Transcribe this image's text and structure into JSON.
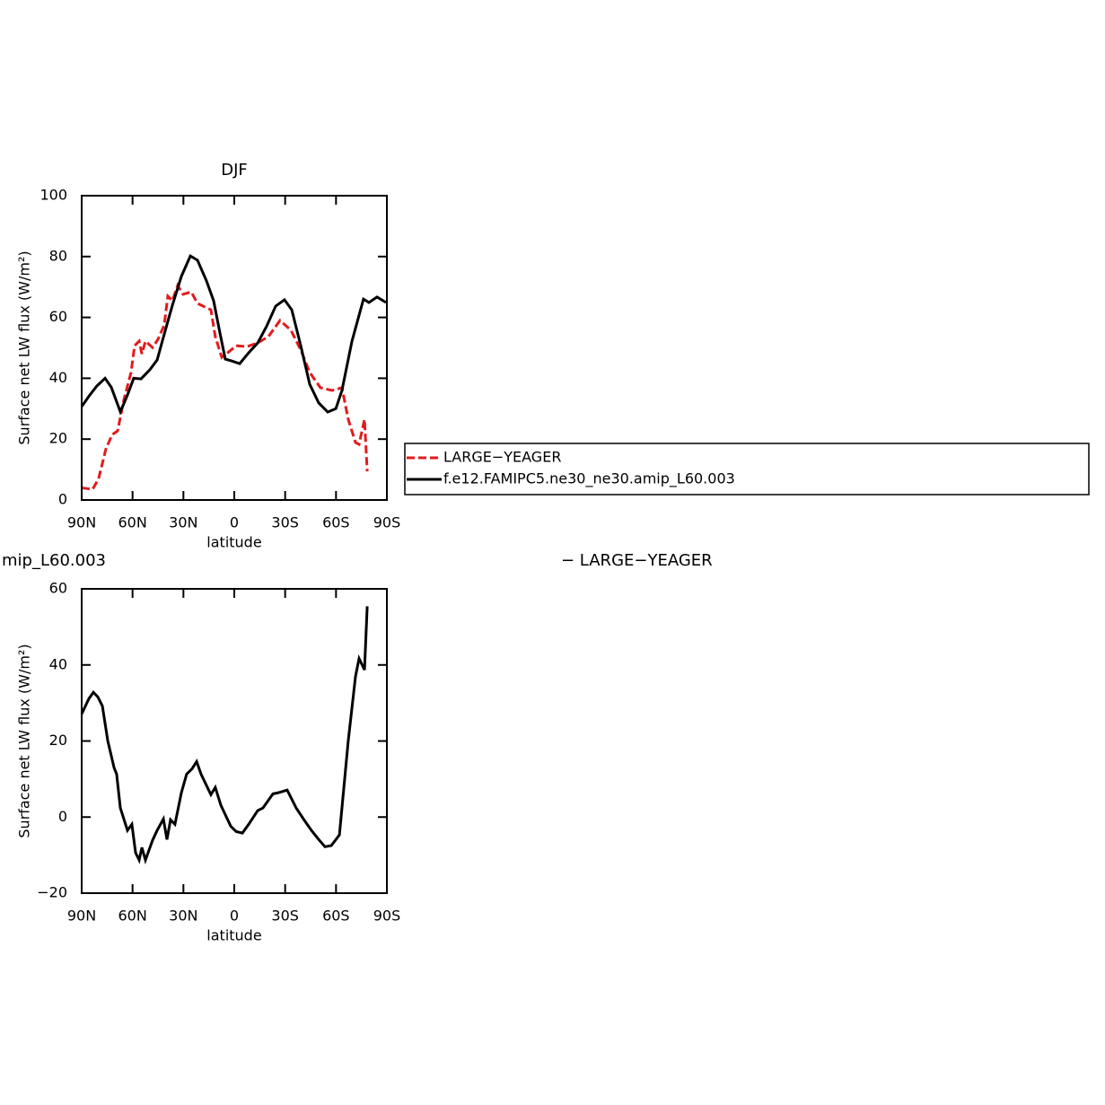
{
  "chart_data": [
    {
      "type": "line",
      "title": "DJF",
      "xlabel": "latitude",
      "ylabel": "Surface net LW flux (W/m²)",
      "xlim": [
        90,
        -90
      ],
      "xticks": [
        {
          "value": 90,
          "label": "90N"
        },
        {
          "value": 60,
          "label": "60N"
        },
        {
          "value": 30,
          "label": "30N"
        },
        0,
        {
          "value": -30,
          "label": "30S"
        },
        {
          "value": -60,
          "label": "60S"
        },
        {
          "value": -90,
          "label": "90S"
        }
      ],
      "ylim": [
        0,
        100
      ],
      "yticks": [
        0,
        20,
        40,
        60,
        80,
        100
      ],
      "legend": "right",
      "series": [
        {
          "name": "LARGE−YEAGER",
          "color": "#e41a1c",
          "linestyle": "dashed",
          "x": [
            90,
            83.6,
            80,
            75.7,
            72,
            68.8,
            65.1,
            60.9,
            58.8,
            56.1,
            54.5,
            52.4,
            48.2,
            45,
            41.3,
            39.2,
            36.5,
            33.4,
            30.2,
            25.4,
            21.7,
            13.8,
            11.2,
            7.4,
            3.2,
            -1.1,
            -7.4,
            -13.8,
            -20.1,
            -27,
            -33.4,
            -39.2,
            -44.5,
            -50.8,
            -57.7,
            -63.5,
            -67.2,
            -71.5,
            -73.6,
            -76.8,
            -78.4
          ],
          "values": [
            4,
            3.5,
            7,
            16.8,
            21.5,
            22.7,
            33,
            41.9,
            50.7,
            52.2,
            48,
            52.2,
            50.1,
            52.8,
            57.5,
            67,
            65.5,
            70.5,
            67.6,
            68.4,
            64.6,
            62.5,
            53.7,
            46.9,
            48.7,
            50.7,
            50.4,
            51.6,
            53.7,
            59,
            55.8,
            49.3,
            41.9,
            36.9,
            36,
            36.9,
            26.5,
            18.9,
            18.3,
            26.5,
            9.4
          ]
        },
        {
          "name": "f.e12.FAMIPC5.ne30_ne30.amip_L60.003",
          "color": "#000000",
          "linestyle": "solid",
          "x": [
            90,
            85.2,
            81,
            76.2,
            72.5,
            67.2,
            63,
            59.3,
            55,
            49.8,
            45.5,
            41.3,
            36.5,
            31.2,
            25.9,
            21.7,
            16.4,
            12.2,
            8.5,
            5.3,
            1.6,
            -3.2,
            -8.5,
            -13.8,
            -19,
            -24.4,
            -29.6,
            -33.9,
            -39.2,
            -44.5,
            -49.8,
            -55.1,
            -59.9,
            -63.5,
            -69.4,
            -76.2,
            -79.4,
            -84.2,
            -89.5
          ],
          "values": [
            30.7,
            34.5,
            37.5,
            40,
            37,
            29,
            34.5,
            40,
            39.8,
            42.8,
            46,
            54.5,
            64,
            73.5,
            80.2,
            78.8,
            72,
            65.5,
            55,
            46.3,
            45.7,
            44.8,
            48.4,
            51.6,
            57,
            63.7,
            65.8,
            62.5,
            50.7,
            38,
            31.9,
            28.9,
            30,
            36,
            52.2,
            66,
            64.9,
            66.7,
            64.9
          ]
        }
      ]
    },
    {
      "type": "line",
      "title": "mip_L60.003",
      "subtitle": "− LARGE−YEAGER",
      "xlabel": "latitude",
      "ylabel": "Surface net LW flux (W/m²)",
      "xlim": [
        90,
        -90
      ],
      "xticks": [
        {
          "value": 90,
          "label": "90N"
        },
        {
          "value": 60,
          "label": "60N"
        },
        {
          "value": 30,
          "label": "30N"
        },
        0,
        {
          "value": -30,
          "label": "30S"
        },
        {
          "value": -60,
          "label": "60S"
        },
        {
          "value": -90,
          "label": "90S"
        }
      ],
      "ylim": [
        -20,
        60
      ],
      "yticks": [
        {
          "value": -20,
          "label": "−20"
        },
        0,
        20,
        40,
        60
      ],
      "series": [
        {
          "color": "#000000",
          "linestyle": "solid",
          "x": [
            90,
            85.8,
            83.1,
            80.5,
            77.8,
            74.6,
            70.9,
            69.4,
            67.2,
            63,
            60.4,
            58.2,
            56.1,
            54.5,
            52.4,
            48.2,
            45.5,
            41.8,
            39.7,
            37.6,
            35,
            31.2,
            28.1,
            24.9,
            22.2,
            19.6,
            13.8,
            11.2,
            7.9,
            2.1,
            -1.1,
            -4.8,
            -8.5,
            -13.8,
            -16.9,
            -22.8,
            -25.9,
            -31.2,
            -36.5,
            -40.8,
            -45.5,
            -49.8,
            -53.5,
            -57.2,
            -62,
            -63.5,
            -67.2,
            -71.5,
            -73.6,
            -76.8,
            -78.4
          ],
          "values": [
            27.1,
            31.1,
            32.8,
            31.6,
            29.2,
            20,
            13,
            11.3,
            2.4,
            -3.5,
            -1.9,
            -9.4,
            -11.3,
            -8,
            -11.3,
            -6.1,
            -3.5,
            -0.5,
            -5.9,
            -0.7,
            -1.9,
            6.4,
            11.3,
            12.7,
            14.6,
            11.3,
            5.9,
            7.8,
            3.1,
            -2.4,
            -3.8,
            -4.2,
            -1.9,
            1.7,
            2.4,
            6.1,
            6.4,
            7.1,
            2.4,
            -0.5,
            -3.5,
            -5.9,
            -7.8,
            -7.5,
            -4.7,
            2.4,
            20,
            37,
            41.7,
            38.7,
            55.4
          ]
        }
      ]
    }
  ]
}
